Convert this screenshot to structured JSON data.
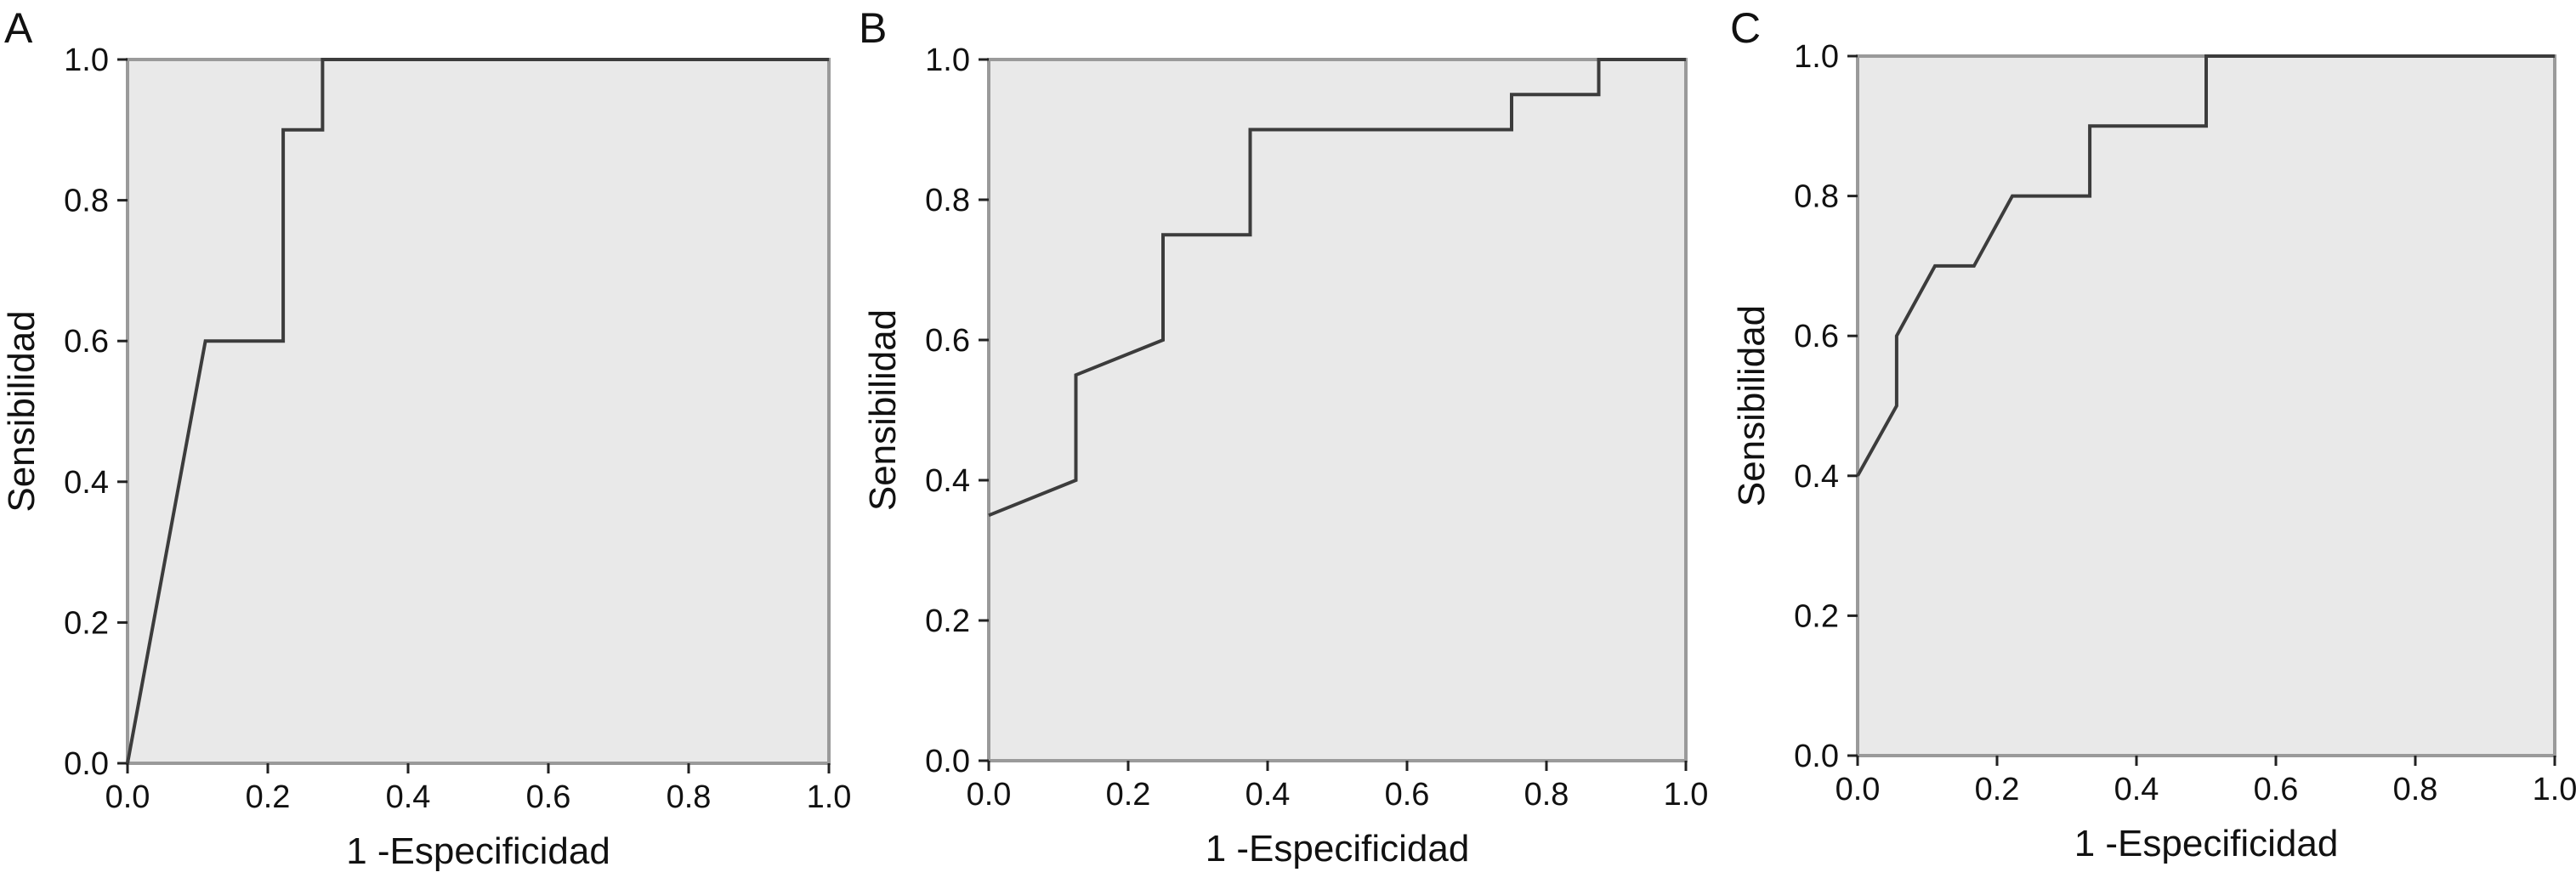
{
  "chart_data": [
    {
      "type": "line",
      "panel": "A",
      "xlabel": "1 -Especificidad",
      "ylabel": "Sensibilidad",
      "xlim": [
        0,
        1
      ],
      "ylim": [
        0,
        1
      ],
      "xticks": [
        "0.0",
        "0.2",
        "0.4",
        "0.6",
        "0.8",
        "1.0"
      ],
      "yticks": [
        "0.0",
        "0.2",
        "0.4",
        "0.6",
        "0.8",
        "1.0"
      ],
      "grid": false,
      "series": [
        {
          "x": [
            0,
            0.111,
            0.222,
            0.222,
            0.278,
            0.278,
            1.0
          ],
          "y": [
            0,
            0.6,
            0.6,
            0.9,
            0.9,
            1.0,
            1.0
          ]
        }
      ]
    },
    {
      "type": "line",
      "panel": "B",
      "xlabel": "1 -Especificidad",
      "ylabel": "Sensibilidad",
      "xlim": [
        0,
        1
      ],
      "ylim": [
        0,
        1
      ],
      "xticks": [
        "0.0",
        "0.2",
        "0.4",
        "0.6",
        "0.8",
        "1.0"
      ],
      "yticks": [
        "0.0",
        "0.2",
        "0.4",
        "0.6",
        "0.8",
        "1.0"
      ],
      "grid": false,
      "series": [
        {
          "x": [
            0,
            0.125,
            0.125,
            0.25,
            0.25,
            0.375,
            0.375,
            0.75,
            0.75,
            0.875,
            0.875,
            1.0
          ],
          "y": [
            0.35,
            0.4,
            0.55,
            0.6,
            0.75,
            0.75,
            0.9,
            0.9,
            0.95,
            0.95,
            1.0,
            1.0
          ]
        }
      ]
    },
    {
      "type": "line",
      "panel": "C",
      "xlabel": "1 -Especificidad",
      "ylabel": "Sensibilidad",
      "xlim": [
        0,
        1
      ],
      "ylim": [
        0,
        1
      ],
      "xticks": [
        "0.0",
        "0.2",
        "0.4",
        "0.6",
        "0.8",
        "1.0"
      ],
      "yticks": [
        "0.0",
        "0.2",
        "0.4",
        "0.6",
        "0.8",
        "1.0"
      ],
      "grid": false,
      "series": [
        {
          "x": [
            0,
            0.056,
            0.056,
            0.111,
            0.167,
            0.222,
            0.333,
            0.333,
            0.5,
            0.5,
            1.0
          ],
          "y": [
            0.4,
            0.5,
            0.6,
            0.7,
            0.7,
            0.8,
            0.8,
            0.9,
            0.9,
            1.0,
            1.0
          ]
        }
      ]
    }
  ]
}
